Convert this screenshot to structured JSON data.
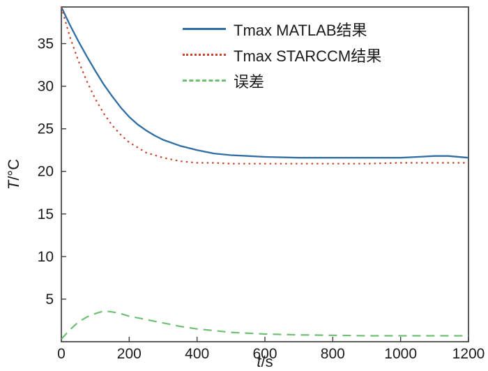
{
  "chart_data": {
    "type": "line",
    "title": "",
    "xlabel": "t/s",
    "xlabel_var": "t",
    "xlabel_unit": "/s",
    "ylabel": "T/°C",
    "ylabel_var": "T",
    "ylabel_unit": "/°C",
    "xlim": [
      0,
      1200
    ],
    "ylim": [
      0,
      39.3
    ],
    "xticks": [
      0,
      200,
      400,
      600,
      800,
      1000,
      1200
    ],
    "yticks": [
      5,
      10,
      15,
      20,
      25,
      30,
      35
    ],
    "grid": false,
    "legend_position": "top-right",
    "axis_color": "#3d3d3d",
    "series": [
      {
        "name": "Tmax MATLAB结果",
        "color": "#2e6da4",
        "line_style": "solid",
        "x": [
          0,
          25,
          50,
          75,
          100,
          125,
          150,
          175,
          200,
          225,
          250,
          275,
          300,
          350,
          400,
          450,
          500,
          550,
          600,
          700,
          800,
          900,
          1000,
          1050,
          1100,
          1140,
          1200
        ],
        "y": [
          39.3,
          37.2,
          35.3,
          33.5,
          31.8,
          30.2,
          28.8,
          27.5,
          26.4,
          25.5,
          24.8,
          24.2,
          23.7,
          23.0,
          22.5,
          22.1,
          21.9,
          21.8,
          21.7,
          21.6,
          21.6,
          21.6,
          21.6,
          21.7,
          21.8,
          21.8,
          21.6
        ]
      },
      {
        "name": "Tmax STARCCM结果",
        "color": "#c8432e",
        "line_style": "dotted",
        "x": [
          0,
          25,
          50,
          75,
          100,
          125,
          150,
          175,
          200,
          225,
          250,
          275,
          300,
          350,
          400,
          450,
          500,
          600,
          700,
          800,
          900,
          1000,
          1100,
          1200
        ],
        "y": [
          39.3,
          35.8,
          33.0,
          30.6,
          28.5,
          26.8,
          25.4,
          24.3,
          23.4,
          22.8,
          22.2,
          21.9,
          21.6,
          21.2,
          21.0,
          21.0,
          20.9,
          20.9,
          20.9,
          20.9,
          20.9,
          21.0,
          21.0,
          21.0
        ]
      },
      {
        "name": "误差",
        "color": "#6fbf73",
        "line_style": "dashed",
        "x": [
          0,
          25,
          50,
          75,
          100,
          125,
          150,
          175,
          200,
          225,
          250,
          275,
          300,
          350,
          400,
          450,
          500,
          600,
          700,
          800,
          900,
          1000,
          1100,
          1200
        ],
        "y": [
          0.3,
          1.4,
          2.3,
          2.9,
          3.3,
          3.6,
          3.5,
          3.3,
          3.0,
          2.8,
          2.6,
          2.4,
          2.2,
          1.8,
          1.5,
          1.3,
          1.1,
          0.9,
          0.8,
          0.75,
          0.7,
          0.7,
          0.7,
          0.7
        ]
      }
    ]
  }
}
